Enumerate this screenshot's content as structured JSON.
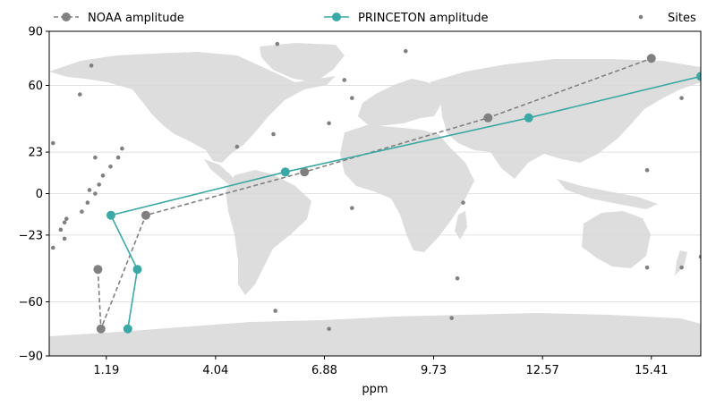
{
  "chart_data": {
    "type": "scatter",
    "title": "",
    "xlabel": "ppm",
    "ylabel": "",
    "xlim": [
      -0.3,
      16.7
    ],
    "ylim": [
      -90,
      90
    ],
    "x_ticks": [
      {
        "value": 1.19,
        "label": "1.19"
      },
      {
        "value": 4.04,
        "label": "4.04"
      },
      {
        "value": 6.88,
        "label": "6.88"
      },
      {
        "value": 9.73,
        "label": "9.73"
      },
      {
        "value": 12.57,
        "label": "12.57"
      },
      {
        "value": 15.41,
        "label": "15.41"
      }
    ],
    "y_ticks": [
      {
        "value": 90,
        "label": "90"
      },
      {
        "value": 60,
        "label": "60"
      },
      {
        "value": 23,
        "label": "23"
      },
      {
        "value": 0,
        "label": "0"
      },
      {
        "value": -23,
        "label": "−23"
      },
      {
        "value": -60,
        "label": "−60"
      },
      {
        "value": -90,
        "label": "−90"
      }
    ],
    "grid": "horizontal",
    "legend_position": "top",
    "background": "world land map (light grey)",
    "series": [
      {
        "name": "NOAA amplitude",
        "style": "dashed-line-with-markers",
        "color": "#808080",
        "points": [
          {
            "x": 0.97,
            "y": -42
          },
          {
            "x": 1.05,
            "y": -75
          },
          {
            "x": 2.22,
            "y": -12
          },
          {
            "x": 6.36,
            "y": 12
          },
          {
            "x": 11.15,
            "y": 42
          },
          {
            "x": 15.41,
            "y": 75
          }
        ]
      },
      {
        "name": "PRINCETON amplitude",
        "style": "solid-line-with-markers",
        "color": "#3aa8a4",
        "points": [
          {
            "x": 1.75,
            "y": -75
          },
          {
            "x": 2.0,
            "y": -42
          },
          {
            "x": 1.31,
            "y": -12
          },
          {
            "x": 5.86,
            "y": 12
          },
          {
            "x": 12.21,
            "y": 42
          },
          {
            "x": 16.7,
            "y": 65
          }
        ]
      },
      {
        "name": "Sites",
        "style": "points",
        "color": "#808080",
        "points": [
          {
            "x": -0.2,
            "y": 28
          },
          {
            "x": -0.2,
            "y": -30
          },
          {
            "x": 0.0,
            "y": -20
          },
          {
            "x": 0.15,
            "y": -14
          },
          {
            "x": 0.1,
            "y": -16
          },
          {
            "x": 0.1,
            "y": -25
          },
          {
            "x": 0.5,
            "y": 55
          },
          {
            "x": 0.8,
            "y": 71
          },
          {
            "x": 0.55,
            "y": -10
          },
          {
            "x": 0.7,
            "y": -5
          },
          {
            "x": 0.75,
            "y": 2
          },
          {
            "x": 0.9,
            "y": 0
          },
          {
            "x": 1.0,
            "y": 5
          },
          {
            "x": 1.1,
            "y": 10
          },
          {
            "x": 1.3,
            "y": 15
          },
          {
            "x": 1.5,
            "y": 20
          },
          {
            "x": 1.6,
            "y": 25
          },
          {
            "x": 0.9,
            "y": 20
          },
          {
            "x": 4.6,
            "y": 26
          },
          {
            "x": 5.55,
            "y": 33
          },
          {
            "x": 5.65,
            "y": 83
          },
          {
            "x": 5.6,
            "y": -65
          },
          {
            "x": 7.4,
            "y": 63
          },
          {
            "x": 7.0,
            "y": 39
          },
          {
            "x": 7.6,
            "y": 53
          },
          {
            "x": 7.6,
            "y": -8
          },
          {
            "x": 7.0,
            "y": -75
          },
          {
            "x": 7.15,
            "y": -91
          },
          {
            "x": 9.0,
            "y": 79
          },
          {
            "x": 10.35,
            "y": -47
          },
          {
            "x": 10.5,
            "y": -5
          },
          {
            "x": 10.2,
            "y": -69
          },
          {
            "x": 15.3,
            "y": 13
          },
          {
            "x": 15.3,
            "y": -41
          },
          {
            "x": 16.2,
            "y": 53
          },
          {
            "x": 16.2,
            "y": -41
          },
          {
            "x": 16.7,
            "y": -35
          }
        ]
      }
    ]
  }
}
